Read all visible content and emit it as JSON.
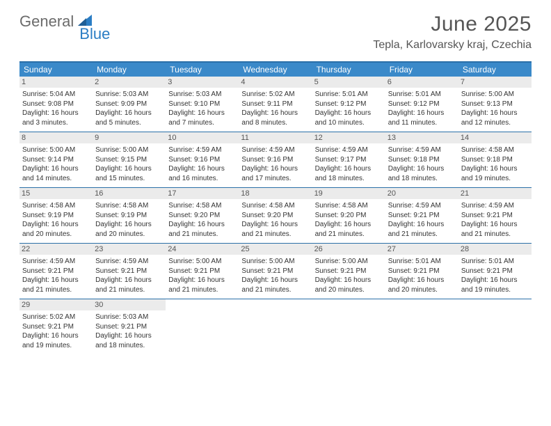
{
  "brand": {
    "part1": "General",
    "part2": "Blue"
  },
  "title": "June 2025",
  "location": "Tepla, Karlovarsky kraj, Czechia",
  "colors": {
    "header_bg": "#3a89c9",
    "rule": "#2a6fa8",
    "daynum_bg": "#ebebeb",
    "text": "#333333",
    "title_text": "#555555",
    "logo_gray": "#6b6b6b",
    "logo_blue": "#2a7dc4"
  },
  "typography": {
    "title_fontsize": 30,
    "location_fontsize": 16,
    "dayhead_fontsize": 12,
    "daynum_fontsize": 11,
    "body_fontsize": 10
  },
  "dayheads": [
    "Sunday",
    "Monday",
    "Tuesday",
    "Wednesday",
    "Thursday",
    "Friday",
    "Saturday"
  ],
  "weeks": [
    [
      {
        "n": "1",
        "sr": "5:04 AM",
        "ss": "9:08 PM",
        "dl": "Daylight: 16 hours and 3 minutes."
      },
      {
        "n": "2",
        "sr": "5:03 AM",
        "ss": "9:09 PM",
        "dl": "Daylight: 16 hours and 5 minutes."
      },
      {
        "n": "3",
        "sr": "5:03 AM",
        "ss": "9:10 PM",
        "dl": "Daylight: 16 hours and 7 minutes."
      },
      {
        "n": "4",
        "sr": "5:02 AM",
        "ss": "9:11 PM",
        "dl": "Daylight: 16 hours and 8 minutes."
      },
      {
        "n": "5",
        "sr": "5:01 AM",
        "ss": "9:12 PM",
        "dl": "Daylight: 16 hours and 10 minutes."
      },
      {
        "n": "6",
        "sr": "5:01 AM",
        "ss": "9:12 PM",
        "dl": "Daylight: 16 hours and 11 minutes."
      },
      {
        "n": "7",
        "sr": "5:00 AM",
        "ss": "9:13 PM",
        "dl": "Daylight: 16 hours and 12 minutes."
      }
    ],
    [
      {
        "n": "8",
        "sr": "5:00 AM",
        "ss": "9:14 PM",
        "dl": "Daylight: 16 hours and 14 minutes."
      },
      {
        "n": "9",
        "sr": "5:00 AM",
        "ss": "9:15 PM",
        "dl": "Daylight: 16 hours and 15 minutes."
      },
      {
        "n": "10",
        "sr": "4:59 AM",
        "ss": "9:16 PM",
        "dl": "Daylight: 16 hours and 16 minutes."
      },
      {
        "n": "11",
        "sr": "4:59 AM",
        "ss": "9:16 PM",
        "dl": "Daylight: 16 hours and 17 minutes."
      },
      {
        "n": "12",
        "sr": "4:59 AM",
        "ss": "9:17 PM",
        "dl": "Daylight: 16 hours and 18 minutes."
      },
      {
        "n": "13",
        "sr": "4:59 AM",
        "ss": "9:18 PM",
        "dl": "Daylight: 16 hours and 18 minutes."
      },
      {
        "n": "14",
        "sr": "4:58 AM",
        "ss": "9:18 PM",
        "dl": "Daylight: 16 hours and 19 minutes."
      }
    ],
    [
      {
        "n": "15",
        "sr": "4:58 AM",
        "ss": "9:19 PM",
        "dl": "Daylight: 16 hours and 20 minutes."
      },
      {
        "n": "16",
        "sr": "4:58 AM",
        "ss": "9:19 PM",
        "dl": "Daylight: 16 hours and 20 minutes."
      },
      {
        "n": "17",
        "sr": "4:58 AM",
        "ss": "9:20 PM",
        "dl": "Daylight: 16 hours and 21 minutes."
      },
      {
        "n": "18",
        "sr": "4:58 AM",
        "ss": "9:20 PM",
        "dl": "Daylight: 16 hours and 21 minutes."
      },
      {
        "n": "19",
        "sr": "4:58 AM",
        "ss": "9:20 PM",
        "dl": "Daylight: 16 hours and 21 minutes."
      },
      {
        "n": "20",
        "sr": "4:59 AM",
        "ss": "9:21 PM",
        "dl": "Daylight: 16 hours and 21 minutes."
      },
      {
        "n": "21",
        "sr": "4:59 AM",
        "ss": "9:21 PM",
        "dl": "Daylight: 16 hours and 21 minutes."
      }
    ],
    [
      {
        "n": "22",
        "sr": "4:59 AM",
        "ss": "9:21 PM",
        "dl": "Daylight: 16 hours and 21 minutes."
      },
      {
        "n": "23",
        "sr": "4:59 AM",
        "ss": "9:21 PM",
        "dl": "Daylight: 16 hours and 21 minutes."
      },
      {
        "n": "24",
        "sr": "5:00 AM",
        "ss": "9:21 PM",
        "dl": "Daylight: 16 hours and 21 minutes."
      },
      {
        "n": "25",
        "sr": "5:00 AM",
        "ss": "9:21 PM",
        "dl": "Daylight: 16 hours and 21 minutes."
      },
      {
        "n": "26",
        "sr": "5:00 AM",
        "ss": "9:21 PM",
        "dl": "Daylight: 16 hours and 20 minutes."
      },
      {
        "n": "27",
        "sr": "5:01 AM",
        "ss": "9:21 PM",
        "dl": "Daylight: 16 hours and 20 minutes."
      },
      {
        "n": "28",
        "sr": "5:01 AM",
        "ss": "9:21 PM",
        "dl": "Daylight: 16 hours and 19 minutes."
      }
    ],
    [
      {
        "n": "29",
        "sr": "5:02 AM",
        "ss": "9:21 PM",
        "dl": "Daylight: 16 hours and 19 minutes."
      },
      {
        "n": "30",
        "sr": "5:03 AM",
        "ss": "9:21 PM",
        "dl": "Daylight: 16 hours and 18 minutes."
      },
      null,
      null,
      null,
      null,
      null
    ]
  ],
  "labels": {
    "sunrise_prefix": "Sunrise: ",
    "sunset_prefix": "Sunset: "
  }
}
